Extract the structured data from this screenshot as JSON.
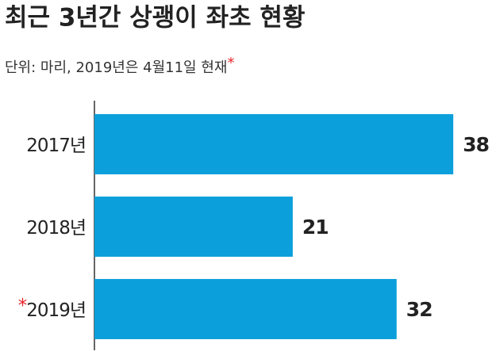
{
  "chart_data": {
    "type": "bar",
    "orientation": "horizontal",
    "title": "최근 3년간 상괭이 좌초 현황",
    "subtitle": "단위: 마리, 2019년은 4월11일 현재",
    "subtitle_marker": "*",
    "categories": [
      "2017년",
      "2018년",
      "2019년"
    ],
    "category_markers": [
      null,
      null,
      "*"
    ],
    "values": [
      38,
      21,
      32
    ],
    "color": "#0b9fdb",
    "marker_color": "#e8262b",
    "xlim": [
      0,
      40
    ]
  }
}
